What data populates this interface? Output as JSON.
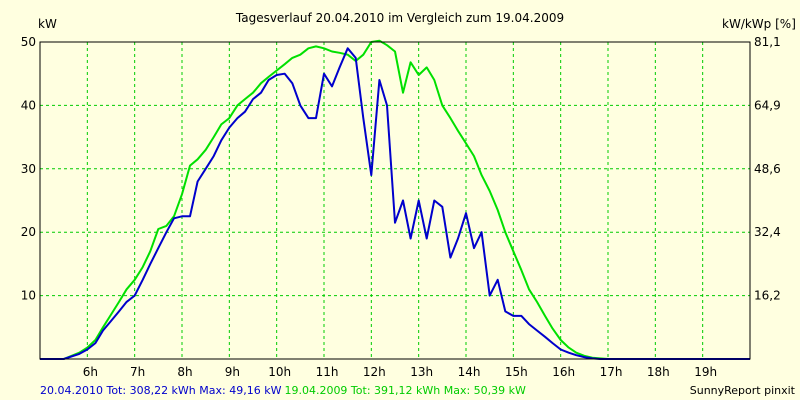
{
  "chart_data": {
    "type": "line",
    "title": "Tagesverlauf 20.04.2010 im Vergleich zum 19.04.2009",
    "ylabel_left": "kW",
    "ylabel_right": "kW/kWp [%]",
    "ylim": [
      0,
      50
    ],
    "yticks_left": [
      "10",
      "20",
      "30",
      "40",
      "50"
    ],
    "yticks_left_values": [
      10,
      20,
      30,
      40,
      50
    ],
    "yticks_right": [
      "16,2",
      "32,4",
      "48,6",
      "64,9",
      "81,1"
    ],
    "x_range_hours": [
      5,
      20
    ],
    "xticks": [
      "6h",
      "7h",
      "8h",
      "9h",
      "10h",
      "11h",
      "12h",
      "13h",
      "14h",
      "15h",
      "16h",
      "17h",
      "18h",
      "19h"
    ],
    "xticks_values": [
      6,
      7,
      8,
      9,
      10,
      11,
      12,
      13,
      14,
      15,
      16,
      17,
      18,
      19
    ],
    "grid": true,
    "series": [
      {
        "name": "20.04.2010",
        "color": "#0000cc",
        "x": [
          5.0,
          5.5,
          5.83,
          6.0,
          6.17,
          6.33,
          6.5,
          6.67,
          6.83,
          7.0,
          7.17,
          7.33,
          7.5,
          7.67,
          7.83,
          8.0,
          8.17,
          8.33,
          8.5,
          8.67,
          8.83,
          9.0,
          9.17,
          9.33,
          9.5,
          9.67,
          9.83,
          10.0,
          10.17,
          10.33,
          10.5,
          10.67,
          10.83,
          11.0,
          11.17,
          11.33,
          11.5,
          11.67,
          11.83,
          12.0,
          12.17,
          12.33,
          12.5,
          12.67,
          12.83,
          13.0,
          13.17,
          13.33,
          13.5,
          13.67,
          13.83,
          14.0,
          14.17,
          14.33,
          14.5,
          14.67,
          14.83,
          15.0,
          15.17,
          15.33,
          15.5,
          15.67,
          15.83,
          16.0,
          16.17,
          16.33,
          16.5,
          16.67,
          16.83,
          17.0,
          17.17,
          17.33,
          17.5,
          17.67,
          17.83,
          18.0,
          18.17,
          18.33,
          18.5,
          18.67,
          18.83,
          19.0,
          19.17,
          19.5,
          20.0
        ],
        "values": [
          0,
          0,
          0.8,
          1.5,
          2.5,
          4.5,
          6.0,
          7.5,
          9.0,
          10.0,
          12.5,
          15.0,
          17.5,
          20.0,
          22.2,
          22.5,
          22.5,
          28.0,
          30.0,
          32.0,
          34.5,
          36.5,
          38.0,
          39.0,
          41.0,
          42.0,
          44.0,
          44.8,
          45.0,
          43.5,
          40.0,
          38.0,
          38.0,
          45.0,
          43.0,
          46.0,
          49.0,
          47.5,
          38.0,
          29.0,
          44.0,
          40.0,
          21.5,
          25.0,
          19.0,
          25.0,
          19.0,
          25.0,
          24.0,
          16.0,
          19.0,
          23.0,
          17.5,
          20.0,
          10.0,
          12.5,
          7.5,
          6.8,
          6.8,
          5.5,
          4.5,
          3.5,
          2.5,
          1.5,
          1.0,
          0.6,
          0.3,
          0.1,
          0,
          0,
          0,
          0,
          0,
          0,
          0,
          0,
          0,
          0,
          0,
          0,
          0,
          0,
          0,
          0,
          0
        ],
        "summary": "20.04.2010 Tot: 308,22 kWh Max: 49,16 kW"
      },
      {
        "name": "19.04.2009",
        "color": "#00e000",
        "x": [
          5.0,
          5.5,
          5.83,
          6.0,
          6.17,
          6.33,
          6.5,
          6.67,
          6.83,
          7.0,
          7.17,
          7.33,
          7.5,
          7.67,
          7.83,
          8.0,
          8.17,
          8.33,
          8.5,
          8.67,
          8.83,
          9.0,
          9.17,
          9.33,
          9.5,
          9.67,
          9.83,
          10.0,
          10.17,
          10.33,
          10.5,
          10.67,
          10.83,
          11.0,
          11.17,
          11.33,
          11.5,
          11.67,
          11.83,
          12.0,
          12.17,
          12.33,
          12.5,
          12.67,
          12.83,
          13.0,
          13.17,
          13.33,
          13.5,
          13.67,
          13.83,
          14.0,
          14.17,
          14.33,
          14.5,
          14.67,
          14.83,
          15.0,
          15.17,
          15.33,
          15.5,
          15.67,
          15.83,
          16.0,
          16.17,
          16.33,
          16.5,
          16.67,
          16.83,
          17.0,
          17.17,
          17.33,
          17.5,
          17.67,
          17.83,
          18.0,
          18.17,
          18.33,
          18.5,
          18.67,
          18.83,
          19.0,
          19.17,
          19.5,
          20.0
        ],
        "values": [
          0,
          0,
          1.0,
          1.8,
          3.0,
          5.0,
          7.0,
          9.0,
          11.0,
          12.5,
          14.5,
          17.0,
          20.5,
          21.0,
          22.5,
          26.0,
          30.5,
          31.5,
          33.0,
          35.0,
          37.0,
          38.0,
          40.0,
          41.0,
          42.0,
          43.5,
          44.5,
          45.5,
          46.5,
          47.5,
          48.0,
          49.0,
          49.3,
          49.0,
          48.5,
          48.3,
          48.0,
          47.0,
          48.0,
          50.0,
          50.2,
          49.5,
          48.5,
          42.0,
          46.8,
          44.8,
          46.0,
          44.0,
          40.0,
          38.0,
          36.0,
          34.0,
          32.0,
          29.0,
          26.5,
          23.5,
          20.0,
          17.0,
          14.0,
          11.0,
          9.0,
          6.8,
          4.8,
          3.0,
          1.8,
          1.0,
          0.5,
          0.2,
          0.1,
          0,
          0,
          0,
          0,
          0,
          0,
          0,
          0,
          0,
          0,
          0,
          0,
          0,
          0,
          0,
          0
        ],
        "summary": "19.04.2009 Tot: 391,12 kWh Max: 50,39 kW"
      }
    ],
    "footer_credit": "SunnyReport pinxit",
    "colors": {
      "background": "#ffffe0",
      "grid": "#00cc00",
      "axis": "#000000"
    }
  }
}
